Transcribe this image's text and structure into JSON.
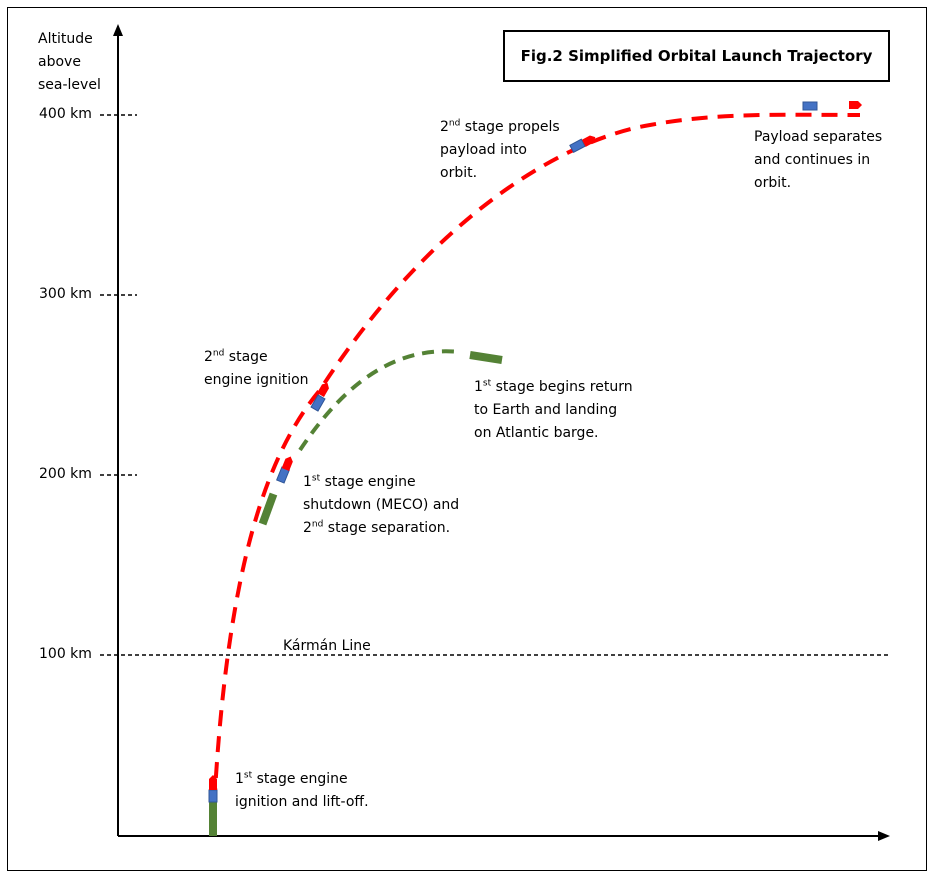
{
  "title": "Fig.2 Simplified Orbital Launch Trajectory",
  "y_axis": {
    "label_lines": [
      "Altitude",
      "above",
      "sea-level"
    ],
    "ticks": [
      "400 km",
      "300 km",
      "200 km",
      "100 km"
    ]
  },
  "karman_line": "Kármán Line",
  "annotations": {
    "liftoff": {
      "line1_sup": "st",
      "line1_a": "1",
      "line1_b": " stage engine",
      "line2": "ignition and lift-off."
    },
    "meco": {
      "line1_a": "1",
      "line1_sup": "st",
      "line1_b": " stage engine",
      "line2": "shutdown (MECO) and",
      "line3_a": "2",
      "line3_sup": "nd",
      "line3_b": " stage separation."
    },
    "second_ignition": {
      "line1_a": "2",
      "line1_sup": "nd",
      "line1_b": " stage",
      "line2": "engine ignition"
    },
    "return": {
      "line1_a": "1",
      "line1_sup": "st",
      "line1_b": " stage begins return",
      "line2": "to Earth and landing",
      "line3": "on Atlantic barge."
    },
    "propel": {
      "line1_a": "2",
      "line1_sup": "nd",
      "line1_b": " stage propels",
      "line2": "payload into",
      "line3": "orbit."
    },
    "payload": {
      "line1": "Payload separates",
      "line2": "and continues in",
      "line3": "orbit."
    }
  },
  "colors": {
    "trajectory_second_stage": "#ff0000",
    "trajectory_first_stage": "#548235",
    "payload": "#4472c4",
    "axis": "#000000"
  }
}
